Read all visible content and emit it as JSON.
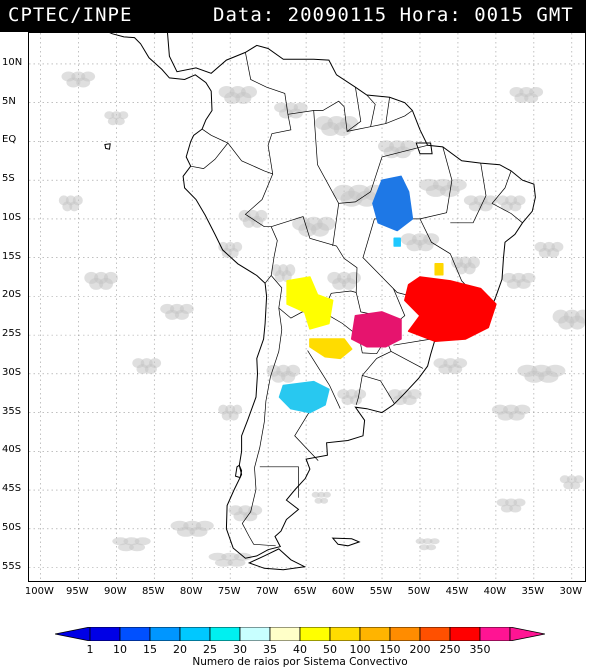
{
  "header": {
    "source": "CPTEC/INPE",
    "datetime": "Data: 20090115 Hora: 0015 GMT"
  },
  "map": {
    "lat_ticks": [
      "10N",
      "5N",
      "EQ",
      "5S",
      "10S",
      "15S",
      "20S",
      "25S",
      "30S",
      "35S",
      "40S",
      "45S",
      "50S",
      "55S"
    ],
    "lon_ticks": [
      "100W",
      "95W",
      "90W",
      "85W",
      "80W",
      "75W",
      "70W",
      "65W",
      "60W",
      "55W",
      "50W",
      "45W",
      "40W",
      "35W",
      "30W"
    ],
    "lat_values": [
      10,
      5,
      0,
      -5,
      -10,
      -15,
      -20,
      -25,
      -30,
      -35,
      -40,
      -45,
      -50,
      -55
    ],
    "lon_values": [
      -100,
      -95,
      -90,
      -85,
      -80,
      -75,
      -70,
      -65,
      -60,
      -55,
      -50,
      -45,
      -40,
      -35,
      -30
    ],
    "lightning_systems": [
      {
        "name": "central-brazil-blue",
        "color": "#1e78e6",
        "lon": -53.5,
        "lat": -8.5
      },
      {
        "name": "brazil-cyan-dot",
        "color": "#1ec8ff",
        "lon": -53.0,
        "lat": -13.0
      },
      {
        "name": "minas-yellow-dot",
        "color": "#ffd700",
        "lon": -47.5,
        "lat": -16.5
      },
      {
        "name": "bolivia-yellow",
        "color": "#ffff00",
        "lon": -65.5,
        "lat": -21.0
      },
      {
        "name": "argentina-yellow",
        "color": "#ffdc00",
        "lon": -62.0,
        "lat": -26.5
      },
      {
        "name": "paraguay-magenta",
        "color": "#e6146e",
        "lon": -56.0,
        "lat": -24.0
      },
      {
        "name": "southeast-red",
        "color": "#ff0000",
        "lon": -45.0,
        "lat": -22.0
      },
      {
        "name": "argentina-cyan",
        "color": "#28c8f0",
        "lon": -65.0,
        "lat": -33.0
      }
    ]
  },
  "colorbar": {
    "labels": [
      "1",
      "10",
      "15",
      "20",
      "25",
      "30",
      "35",
      "40",
      "50",
      "100",
      "150",
      "200",
      "250",
      "350"
    ],
    "colors": [
      "#0000e6",
      "#0050ff",
      "#0096ff",
      "#00c8ff",
      "#00f0f0",
      "#c8ffff",
      "#ffffc8",
      "#ffff00",
      "#ffdc00",
      "#ffb400",
      "#ff8c00",
      "#ff5000",
      "#ff0000",
      "#ff1493"
    ],
    "title": "Numero de raios por Sistema Convectivo"
  }
}
